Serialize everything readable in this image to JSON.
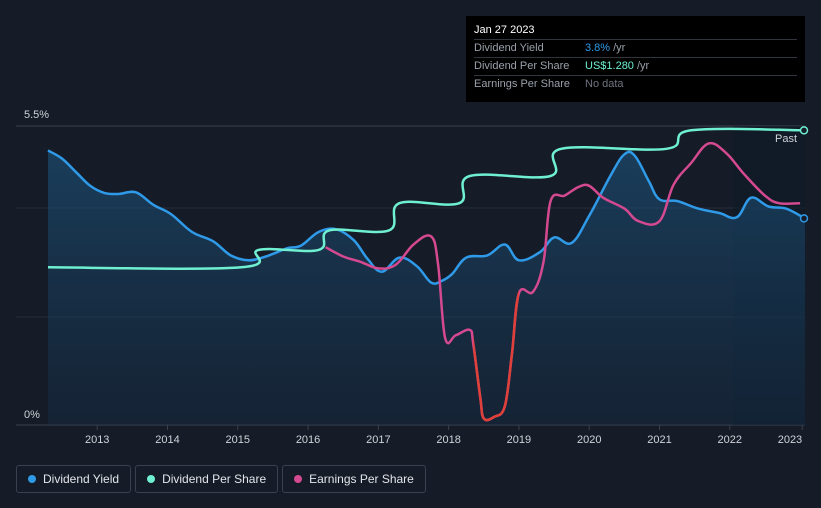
{
  "tooltip": {
    "date": "Jan 27 2023",
    "rows": [
      {
        "label": "Dividend Yield",
        "value": "3.8%",
        "unit": "/yr",
        "color": "#2f9ae8"
      },
      {
        "label": "Dividend Per Share",
        "value": "US$1.280",
        "unit": "/yr",
        "color": "#6ef0d1"
      },
      {
        "label": "Earnings Per Share",
        "value": "No data",
        "unit": "",
        "color": "#6f7480"
      }
    ]
  },
  "past_label": "Past",
  "legend": [
    {
      "label": "Dividend Yield",
      "color": "#2f9ae8"
    },
    {
      "label": "Dividend Per Share",
      "color": "#6ef0d1"
    },
    {
      "label": "Earnings Per Share",
      "color": "#d4498f"
    }
  ],
  "chart_data": {
    "type": "line",
    "title": "",
    "ylabel_top": "5.5%",
    "ylabel_bottom": "0%",
    "ylim": [
      0,
      5.5
    ],
    "xlim": [
      2012.3,
      2023.07
    ],
    "xticks": [
      {
        "label": "2013",
        "value": 2013
      },
      {
        "label": "2014",
        "value": 2014
      },
      {
        "label": "2015",
        "value": 2015
      },
      {
        "label": "2016",
        "value": 2016
      },
      {
        "label": "2017",
        "value": 2017
      },
      {
        "label": "2018",
        "value": 2018
      },
      {
        "label": "2019",
        "value": 2019
      },
      {
        "label": "2020",
        "value": 2020
      },
      {
        "label": "2021",
        "value": 2021
      },
      {
        "label": "2022",
        "value": 2022
      },
      {
        "label": "2023",
        "value": 2023.03
      }
    ],
    "series": [
      {
        "name": "Dividend Yield",
        "color": "#2f9ae8",
        "points": [
          [
            2012.3,
            5.05
          ],
          [
            2012.5,
            4.9
          ],
          [
            2012.7,
            4.65
          ],
          [
            2012.9,
            4.4
          ],
          [
            2013.1,
            4.27
          ],
          [
            2013.3,
            4.25
          ],
          [
            2013.55,
            4.28
          ],
          [
            2013.8,
            4.05
          ],
          [
            2014.05,
            3.88
          ],
          [
            2014.35,
            3.55
          ],
          [
            2014.65,
            3.38
          ],
          [
            2014.9,
            3.12
          ],
          [
            2015.15,
            3.03
          ],
          [
            2015.4,
            3.1
          ],
          [
            2015.7,
            3.25
          ],
          [
            2015.9,
            3.3
          ],
          [
            2016.15,
            3.55
          ],
          [
            2016.4,
            3.6
          ],
          [
            2016.65,
            3.4
          ],
          [
            2016.85,
            3.05
          ],
          [
            2017.05,
            2.82
          ],
          [
            2017.3,
            3.08
          ],
          [
            2017.55,
            2.92
          ],
          [
            2017.75,
            2.62
          ],
          [
            2017.9,
            2.65
          ],
          [
            2018.05,
            2.78
          ],
          [
            2018.25,
            3.08
          ],
          [
            2018.55,
            3.12
          ],
          [
            2018.8,
            3.32
          ],
          [
            2019.0,
            3.03
          ],
          [
            2019.3,
            3.18
          ],
          [
            2019.5,
            3.45
          ],
          [
            2019.75,
            3.35
          ],
          [
            2020.0,
            3.85
          ],
          [
            2020.3,
            4.58
          ],
          [
            2020.5,
            4.98
          ],
          [
            2020.65,
            4.95
          ],
          [
            2020.85,
            4.48
          ],
          [
            2021.0,
            4.15
          ],
          [
            2021.25,
            4.12
          ],
          [
            2021.55,
            3.98
          ],
          [
            2021.85,
            3.9
          ],
          [
            2022.1,
            3.82
          ],
          [
            2022.3,
            4.18
          ],
          [
            2022.55,
            4.02
          ],
          [
            2022.8,
            3.98
          ],
          [
            2023.07,
            3.8
          ]
        ]
      },
      {
        "name": "Dividend Per Share",
        "color": "#6ef0d1",
        "points": [
          [
            2012.3,
            2.9
          ],
          [
            2015.05,
            2.9
          ],
          [
            2015.3,
            3.22
          ],
          [
            2016.15,
            3.22
          ],
          [
            2016.3,
            3.58
          ],
          [
            2017.15,
            3.58
          ],
          [
            2017.3,
            4.08
          ],
          [
            2018.15,
            4.08
          ],
          [
            2018.3,
            4.58
          ],
          [
            2019.45,
            4.58
          ],
          [
            2019.6,
            5.08
          ],
          [
            2021.1,
            5.08
          ],
          [
            2021.45,
            5.42
          ],
          [
            2023.07,
            5.42
          ]
        ]
      },
      {
        "name": "Earnings Per Share",
        "color": "#d4498f",
        "points": [
          [
            2016.25,
            3.27
          ],
          [
            2016.5,
            3.1
          ],
          [
            2016.75,
            3.0
          ],
          [
            2017.0,
            2.88
          ],
          [
            2017.25,
            2.95
          ],
          [
            2017.5,
            3.32
          ],
          [
            2017.75,
            3.47
          ],
          [
            2017.85,
            2.95
          ],
          [
            2017.95,
            1.6
          ],
          [
            2018.1,
            1.65
          ],
          [
            2018.3,
            1.75
          ],
          [
            2018.35,
            1.5
          ],
          [
            2018.45,
            0.5
          ],
          [
            2018.5,
            0.12
          ],
          [
            2018.65,
            0.15
          ],
          [
            2018.8,
            0.35
          ],
          [
            2018.9,
            1.3
          ],
          [
            2019.0,
            2.42
          ],
          [
            2019.2,
            2.45
          ],
          [
            2019.35,
            3.0
          ],
          [
            2019.45,
            4.12
          ],
          [
            2019.65,
            4.22
          ],
          [
            2019.85,
            4.38
          ],
          [
            2020.0,
            4.4
          ],
          [
            2020.2,
            4.18
          ],
          [
            2020.5,
            3.98
          ],
          [
            2020.7,
            3.75
          ],
          [
            2021.0,
            3.75
          ],
          [
            2021.2,
            4.42
          ],
          [
            2021.45,
            4.82
          ],
          [
            2021.7,
            5.18
          ],
          [
            2021.95,
            5.0
          ],
          [
            2022.2,
            4.62
          ],
          [
            2022.5,
            4.22
          ],
          [
            2022.7,
            4.08
          ],
          [
            2023.0,
            4.08
          ]
        ]
      }
    ],
    "earnings_negative_range": [
      2018.35,
      2019.0
    ],
    "earnings_negative_color": "#e0403a",
    "future_shade_start": 2022.05
  }
}
